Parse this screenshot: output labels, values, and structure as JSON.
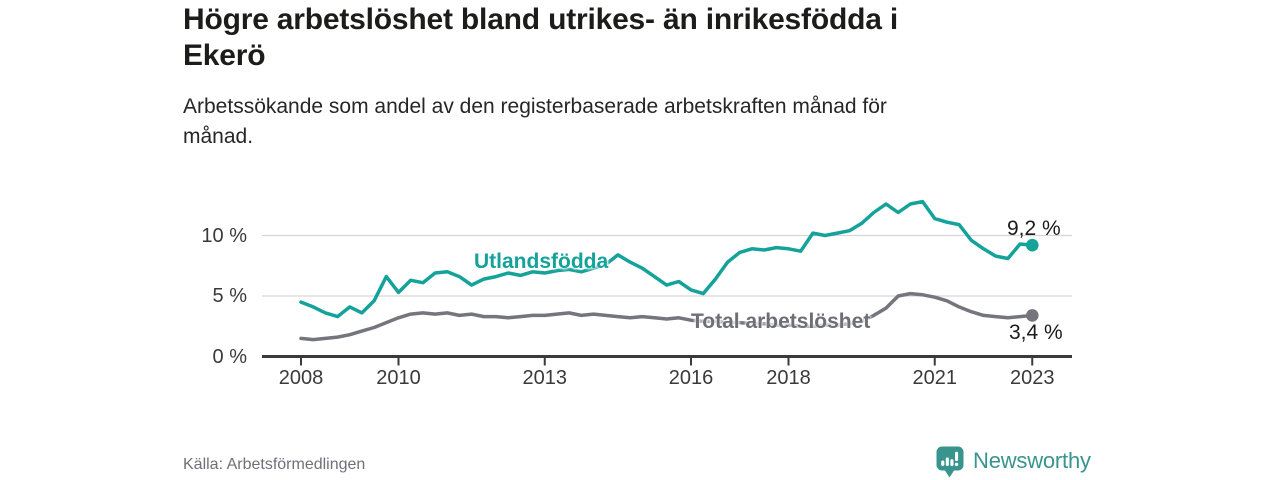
{
  "header": {
    "title": "Högre arbetslöshet bland utrikes- än inrikesfödda i\nEkerö",
    "subtitle": "Arbetssökande som andel av den registerbaserade arbetskraften månad för\nmånad."
  },
  "source": {
    "label": "Källa: Arbetsförmedlingen"
  },
  "branding": {
    "name": "Newsworthy",
    "icon": "newsworthy-chart-bubble-icon"
  },
  "colors": {
    "accent_teal": "#14a29a",
    "series_gray": "#75757d",
    "logo_teal": "#3a948e",
    "title_text": "#1c1c1a",
    "axis_text": "#3a3a3a",
    "axis_line": "#3a3a3a",
    "gridline": "#d6d6d6",
    "muted_text": "#70707a"
  },
  "chart_data": {
    "type": "line",
    "title": "Högre arbetslöshet bland utrikes- än inrikesfödda i Ekerö",
    "subtitle": "Arbetssökande som andel av den registerbaserade arbetskraften månad för månad.",
    "xlabel": "",
    "ylabel": "",
    "grid": "horizontal",
    "legend_position": "inline-labels",
    "xlim": [
      2007.2,
      2023.8
    ],
    "ylim": [
      0,
      14
    ],
    "x_ticks": [
      2008,
      2010,
      2013,
      2016,
      2018,
      2021,
      2023
    ],
    "x_tick_labels": [
      "2008",
      "2010",
      "2013",
      "2016",
      "2018",
      "2021",
      "2023"
    ],
    "y_ticks": [
      0,
      5,
      10
    ],
    "y_tick_labels": [
      "0 %",
      "5 %",
      "10 %"
    ],
    "x": [
      2008.0,
      2008.25,
      2008.5,
      2008.75,
      2009.0,
      2009.25,
      2009.5,
      2009.75,
      2010.0,
      2010.25,
      2010.5,
      2010.75,
      2011.0,
      2011.25,
      2011.5,
      2011.75,
      2012.0,
      2012.25,
      2012.5,
      2012.75,
      2013.0,
      2013.25,
      2013.5,
      2013.75,
      2014.0,
      2014.25,
      2014.5,
      2014.75,
      2015.0,
      2015.25,
      2015.5,
      2015.75,
      2016.0,
      2016.25,
      2016.5,
      2016.75,
      2017.0,
      2017.25,
      2017.5,
      2017.75,
      2018.0,
      2018.25,
      2018.5,
      2018.75,
      2019.0,
      2019.25,
      2019.5,
      2019.75,
      2020.0,
      2020.25,
      2020.5,
      2020.75,
      2021.0,
      2021.25,
      2021.5,
      2021.75,
      2022.0,
      2022.25,
      2022.5,
      2022.75,
      2023.0
    ],
    "series": [
      {
        "name": "Utlandsfödda",
        "color": "#14a29a",
        "end_label": "9,2 %",
        "end_value": 9.2,
        "values": [
          4.5,
          4.1,
          3.6,
          3.3,
          4.1,
          3.6,
          4.6,
          6.6,
          5.3,
          6.3,
          6.1,
          6.9,
          7.0,
          6.6,
          5.9,
          6.4,
          6.6,
          6.9,
          6.7,
          7.0,
          6.9,
          7.1,
          7.2,
          7.0,
          7.3,
          7.6,
          8.4,
          7.8,
          7.3,
          6.6,
          5.9,
          6.2,
          5.5,
          5.2,
          6.4,
          7.8,
          8.6,
          8.9,
          8.8,
          9.0,
          8.9,
          8.7,
          10.2,
          10.0,
          10.2,
          10.4,
          11.0,
          11.9,
          12.6,
          11.9,
          12.6,
          12.8,
          11.4,
          11.1,
          10.9,
          9.6,
          8.9,
          8.3,
          8.1,
          9.3,
          9.2
        ]
      },
      {
        "name": "Total arbetslöshet",
        "color": "#75757d",
        "end_label": "3,4 %",
        "end_value": 3.4,
        "values": [
          1.5,
          1.4,
          1.5,
          1.6,
          1.8,
          2.1,
          2.4,
          2.8,
          3.2,
          3.5,
          3.6,
          3.5,
          3.6,
          3.4,
          3.5,
          3.3,
          3.3,
          3.2,
          3.3,
          3.4,
          3.4,
          3.5,
          3.6,
          3.4,
          3.5,
          3.4,
          3.3,
          3.2,
          3.3,
          3.2,
          3.1,
          3.2,
          3.0,
          2.9,
          2.9,
          2.8,
          2.8,
          2.7,
          2.7,
          2.6,
          2.6,
          2.5,
          2.5,
          2.6,
          2.6,
          2.7,
          2.9,
          3.4,
          4.0,
          5.0,
          5.2,
          5.1,
          4.9,
          4.6,
          4.1,
          3.7,
          3.4,
          3.3,
          3.2,
          3.3,
          3.4
        ]
      }
    ]
  }
}
